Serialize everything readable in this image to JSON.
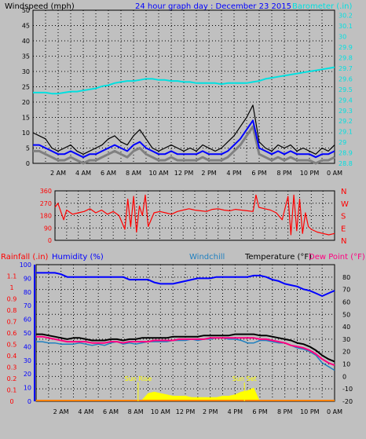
{
  "header": {
    "left_label": "Windspeed (mph)",
    "title": "24 hour graph day : December 23 2015",
    "right_label": "Barometer (.in)"
  },
  "colors": {
    "background": "#c0c0c0",
    "plot_bg": "#c0c0c0",
    "grid": "#000000",
    "windspeed": "#000000",
    "wind_avg": "#0000ff",
    "wind_shadow": "#808080",
    "barometer": "#00e0e0",
    "direction": "#ff0000",
    "humidity": "#0000ff",
    "temperature": "#000000",
    "windchill": "#2080c0",
    "dewpoint": "#ff0080",
    "rainfall": "#ff0000",
    "solar": "#ffff00",
    "sun_marker": "#ffff00",
    "left_axis_blue": "#0000ff",
    "rain_bar": "#ff8000"
  },
  "x_axis": {
    "ticks": [
      "2 AM",
      "4 AM",
      "6 AM",
      "8 AM",
      "10 AM",
      "12 PM",
      "2 PM",
      "4 PM",
      "6 PM",
      "8 PM",
      "10 PM",
      "0 AM"
    ]
  },
  "chart_data": [
    {
      "type": "line",
      "name_id": "wind-barometer",
      "x": [
        0.0,
        0.5,
        1.0,
        1.5,
        2.0,
        2.5,
        3.0,
        3.5,
        4.0,
        4.5,
        5.0,
        5.5,
        6.0,
        6.5,
        7.0,
        7.5,
        8.0,
        8.5,
        9.0,
        9.5,
        10.0,
        10.5,
        11.0,
        11.5,
        12.0,
        12.5,
        13.0,
        13.5,
        14.0,
        14.5,
        15.0,
        15.5,
        16.0,
        16.5,
        17.0,
        17.5,
        18.0,
        18.5,
        19.0,
        19.5,
        20.0,
        20.5,
        21.0,
        21.5,
        22.0,
        22.5,
        23.0,
        23.5,
        24.0
      ],
      "series": [
        {
          "name": "Windspeed (mph)",
          "axis": "left",
          "values": [
            10,
            9,
            8,
            5,
            4,
            5,
            6,
            4,
            3,
            4,
            5,
            6,
            8,
            9,
            7,
            6,
            9,
            11,
            8,
            5,
            4,
            5,
            6,
            5,
            4,
            5,
            4,
            6,
            5,
            4,
            5,
            7,
            9,
            12,
            15,
            19,
            7,
            5,
            4,
            6,
            5,
            6,
            4,
            5,
            4,
            3,
            5,
            4,
            6
          ]
        },
        {
          "name": "wind average",
          "axis": "left",
          "values": [
            6,
            6,
            5,
            4,
            3,
            3,
            4,
            3,
            2,
            3,
            3,
            4,
            5,
            6,
            5,
            4,
            6,
            7,
            5,
            4,
            3,
            3,
            4,
            3,
            3,
            3,
            3,
            4,
            3,
            3,
            3,
            4,
            6,
            8,
            11,
            14,
            5,
            4,
            3,
            4,
            3,
            4,
            3,
            3,
            3,
            2,
            3,
            3,
            4
          ]
        },
        {
          "name": "Barometer (.in)",
          "axis": "right",
          "values": [
            29.47,
            29.47,
            29.47,
            29.46,
            29.46,
            29.47,
            29.48,
            29.48,
            29.49,
            29.5,
            29.51,
            29.53,
            29.54,
            29.56,
            29.57,
            29.58,
            29.58,
            29.59,
            29.6,
            29.6,
            29.59,
            29.59,
            29.58,
            29.58,
            29.57,
            29.57,
            29.56,
            29.56,
            29.56,
            29.56,
            29.55,
            29.56,
            29.56,
            29.56,
            29.56,
            29.57,
            29.58,
            29.6,
            29.61,
            29.62,
            29.63,
            29.64,
            29.65,
            29.66,
            29.67,
            29.68,
            29.69,
            29.7,
            29.71
          ]
        }
      ],
      "left_ticks": [
        0,
        5,
        10,
        15,
        20,
        25,
        30,
        35,
        40,
        45,
        50
      ],
      "left_range": [
        0,
        50
      ],
      "right_ticks": [
        28.8,
        28.9,
        29,
        29.1,
        29.2,
        29.3,
        29.4,
        29.5,
        29.6,
        29.7,
        29.8,
        29.9,
        30,
        30.1,
        30.2
      ],
      "right_range": [
        28.8,
        30.25
      ],
      "grid": true
    },
    {
      "type": "line",
      "name_id": "wind-direction",
      "x": [
        0.0,
        0.25,
        0.5,
        0.75,
        1.0,
        1.5,
        2.0,
        2.5,
        3.0,
        3.5,
        4.0,
        4.5,
        5.0,
        5.5,
        6.0,
        6.25,
        6.5,
        6.75,
        7.0,
        7.25,
        7.5,
        7.75,
        8.0,
        8.5,
        9.0,
        9.5,
        10.0,
        10.5,
        11.0,
        11.5,
        12.0,
        12.5,
        13.0,
        13.5,
        14.0,
        14.5,
        15.0,
        15.5,
        16.0,
        16.5,
        17.0,
        17.25,
        17.5,
        18.0,
        18.5,
        19.0,
        19.5,
        20.0,
        20.25,
        20.5,
        20.75,
        21.0,
        21.25,
        21.5,
        21.75,
        22.0,
        22.5,
        23.0,
        23.5,
        24.0
      ],
      "series": [
        {
          "name": "Wind direction",
          "values": [
            240,
            270,
            210,
            150,
            220,
            190,
            200,
            210,
            230,
            200,
            220,
            190,
            210,
            180,
            80,
            300,
            100,
            320,
            60,
            250,
            180,
            330,
            100,
            200,
            210,
            200,
            190,
            210,
            220,
            230,
            220,
            215,
            210,
            225,
            230,
            220,
            215,
            225,
            220,
            215,
            210,
            330,
            240,
            230,
            220,
            200,
            150,
            320,
            40,
            330,
            70,
            300,
            50,
            200,
            100,
            80,
            60,
            50,
            40,
            50
          ]
        }
      ],
      "left_ticks": [
        0,
        90,
        180,
        270,
        360
      ],
      "left_range": [
        0,
        360
      ],
      "right_labels": [
        "N",
        "W",
        "S",
        "E",
        "N"
      ],
      "grid": true
    },
    {
      "type": "area",
      "name_id": "temperature-humidity",
      "header": {
        "rainfall": "Rainfall (.in)",
        "humidity": "Humidity (%)",
        "windchill": "Windchill",
        "temperature": "Temperature (°F)",
        "dewpoint": "Dew Point (°F)"
      },
      "x": [
        0.0,
        0.5,
        1.0,
        1.5,
        2.0,
        2.5,
        3.0,
        3.5,
        4.0,
        4.5,
        5.0,
        5.5,
        6.0,
        6.5,
        7.0,
        7.5,
        8.0,
        8.5,
        9.0,
        9.5,
        10.0,
        10.5,
        11.0,
        11.5,
        12.0,
        12.5,
        13.0,
        13.5,
        14.0,
        14.5,
        15.0,
        15.5,
        16.0,
        16.5,
        17.0,
        17.5,
        18.0,
        18.5,
        19.0,
        19.5,
        20.0,
        20.5,
        21.0,
        21.5,
        22.0,
        22.5,
        23.0,
        23.5,
        24.0
      ],
      "series": [
        {
          "name": "Humidity (%)",
          "axis": "left",
          "values": [
            94,
            94,
            94,
            94,
            93,
            91,
            91,
            91,
            91,
            91,
            91,
            91,
            91,
            91,
            91,
            89,
            89,
            89,
            89,
            87,
            86,
            86,
            86,
            87,
            88,
            89,
            90,
            90,
            90,
            91,
            91,
            91,
            91,
            91,
            91,
            92,
            92,
            91,
            89,
            88,
            86,
            85,
            84,
            82,
            81,
            79,
            77,
            79,
            81
          ]
        },
        {
          "name": "Temperature (°F)",
          "axis": "right",
          "values": [
            34,
            34,
            33,
            32,
            31,
            30,
            31,
            31,
            30,
            29,
            29,
            29,
            30,
            30,
            29,
            30,
            30,
            31,
            31,
            31,
            31,
            31,
            32,
            32,
            32,
            32,
            32,
            33,
            33,
            33,
            33,
            33,
            34,
            34,
            34,
            34,
            33,
            33,
            32,
            31,
            30,
            29,
            27,
            26,
            24,
            21,
            17,
            14,
            12
          ]
        },
        {
          "name": "Dew Point (°F)",
          "axis": "right",
          "values": [
            32,
            32,
            31,
            30,
            29,
            28,
            28,
            28,
            28,
            27,
            27,
            27,
            28,
            28,
            27,
            28,
            28,
            28,
            28,
            29,
            29,
            29,
            29,
            30,
            30,
            30,
            30,
            30,
            31,
            31,
            31,
            31,
            31,
            31,
            31,
            31,
            30,
            30,
            29,
            28,
            27,
            25,
            24,
            23,
            21,
            18,
            14,
            11,
            9
          ]
        },
        {
          "name": "Windchill",
          "axis": "right",
          "values": [
            28,
            28,
            27,
            27,
            26,
            26,
            26,
            27,
            26,
            25,
            26,
            25,
            27,
            28,
            26,
            27,
            26,
            27,
            28,
            28,
            28,
            28,
            29,
            29,
            29,
            30,
            29,
            30,
            30,
            31,
            31,
            30,
            30,
            29,
            27,
            27,
            29,
            29,
            28,
            27,
            27,
            25,
            23,
            22,
            20,
            17,
            11,
            8,
            5
          ]
        },
        {
          "name": "Solar",
          "axis": "left",
          "values": [
            0,
            0,
            0,
            0,
            0,
            0,
            0,
            0,
            0,
            0,
            0,
            0,
            0,
            0,
            0,
            0,
            0,
            1,
            6,
            7,
            6,
            5,
            4,
            4,
            4,
            3,
            3,
            3,
            3,
            3,
            4,
            4,
            5,
            7,
            8,
            10,
            0,
            0,
            0,
            0,
            0,
            0,
            0,
            0,
            0,
            0,
            0,
            0,
            0
          ]
        }
      ],
      "left_ticks": [
        0,
        10,
        20,
        30,
        40,
        50,
        60,
        70,
        80,
        90,
        100
      ],
      "left_range": [
        0,
        100
      ],
      "rain_ticks": [
        0,
        0.1,
        0.2,
        0.3,
        0.4,
        0.5,
        0.6,
        0.7,
        0.8,
        0.9,
        1,
        1.1
      ],
      "rain_tick_labels": [
        "0",
        "0.1",
        "0.2",
        "0.3",
        "0.4",
        "0.5",
        "0.6",
        "0.7",
        "0.8",
        "0.9",
        "1",
        "1.1"
      ],
      "rain_range": [
        0,
        1.2
      ],
      "right_ticks": [
        -20,
        -10,
        0,
        10,
        20,
        30,
        40,
        50,
        60,
        70,
        80
      ],
      "right_range": [
        -20,
        90
      ],
      "annotations": [
        {
          "text": "Sun Rise",
          "x": 8.2
        },
        {
          "text": "Sun Set",
          "x": 16.75
        }
      ],
      "grid": true
    }
  ]
}
